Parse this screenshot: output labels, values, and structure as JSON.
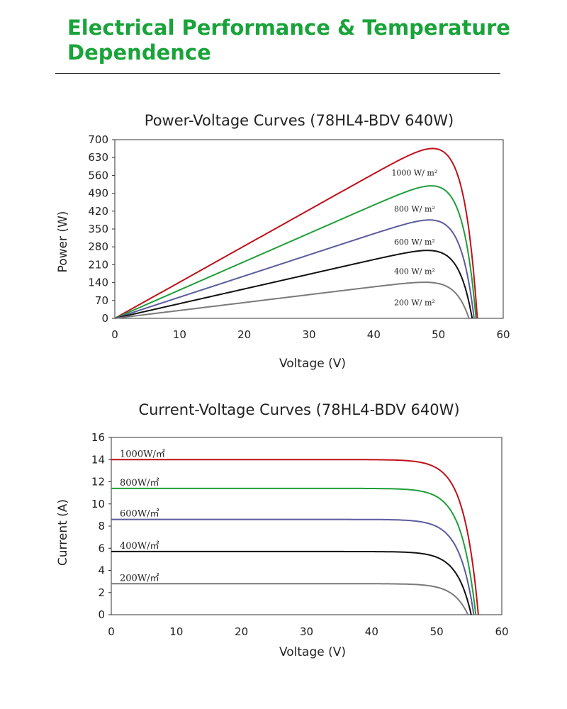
{
  "page": {
    "title": "Electrical Performance & Temperature Dependence"
  },
  "chart_data": [
    {
      "id": "pv",
      "type": "line",
      "title": "Power-Voltage Curves (78HL4-BDV 640W)",
      "xlabel": "Voltage (V)",
      "ylabel": "Power (W)",
      "xlim": [
        0,
        60
      ],
      "ylim": [
        0,
        700
      ],
      "xticks": [
        "0",
        "10",
        "20",
        "30",
        "40",
        "50",
        "60"
      ],
      "yticks": [
        "0",
        "70",
        "140",
        "210",
        "280",
        "350",
        "420",
        "490",
        "560",
        "630",
        "700"
      ],
      "grid": false,
      "series": [
        {
          "name": "1000 W/ m²",
          "color": "#c0101a",
          "isc": 14.0,
          "voc": 56.0,
          "pmax": 648,
          "vmp": 46.3
        },
        {
          "name": "800 W/ m²",
          "color": "#1f9e3a",
          "isc": 11.3,
          "voc": 55.8,
          "pmax": 507,
          "vmp": 46.3
        },
        {
          "name": "600 W/ m²",
          "color": "#5b5b9e",
          "isc": 8.6,
          "voc": 55.5,
          "pmax": 378,
          "vmp": 46.3
        },
        {
          "name": "400 W/ m²",
          "color": "#111111",
          "isc": 5.7,
          "voc": 55.2,
          "pmax": 262,
          "vmp": 46.3
        },
        {
          "name": "200 W/ m²",
          "color": "#7a7a7a",
          "isc": 3.0,
          "voc": 54.7,
          "pmax": 140,
          "vmp": 46.3
        }
      ]
    },
    {
      "id": "iv",
      "type": "line",
      "title": "Current-Voltage Curves (78HL4-BDV 640W)",
      "xlabel": "Voltage (V)",
      "ylabel": "Current (A)",
      "xlim": [
        0,
        60
      ],
      "ylim": [
        0,
        16
      ],
      "xticks": [
        "0",
        "10",
        "20",
        "30",
        "40",
        "50",
        "60"
      ],
      "yticks": [
        "0",
        "2",
        "4",
        "6",
        "8",
        "10",
        "12",
        "14",
        "16"
      ],
      "grid": false,
      "series": [
        {
          "name": "1000W/㎡",
          "color": "#c0101a",
          "isc": 14.0,
          "voc": 56.4
        },
        {
          "name": "800W/㎡",
          "color": "#1f9e3a",
          "isc": 11.4,
          "voc": 56.0
        },
        {
          "name": "600W/㎡",
          "color": "#5b5b9e",
          "isc": 8.6,
          "voc": 55.7
        },
        {
          "name": "400W/㎡",
          "color": "#111111",
          "isc": 5.7,
          "voc": 55.3
        },
        {
          "name": "200W/㎡",
          "color": "#7a7a7a",
          "isc": 2.8,
          "voc": 54.8
        }
      ]
    }
  ]
}
